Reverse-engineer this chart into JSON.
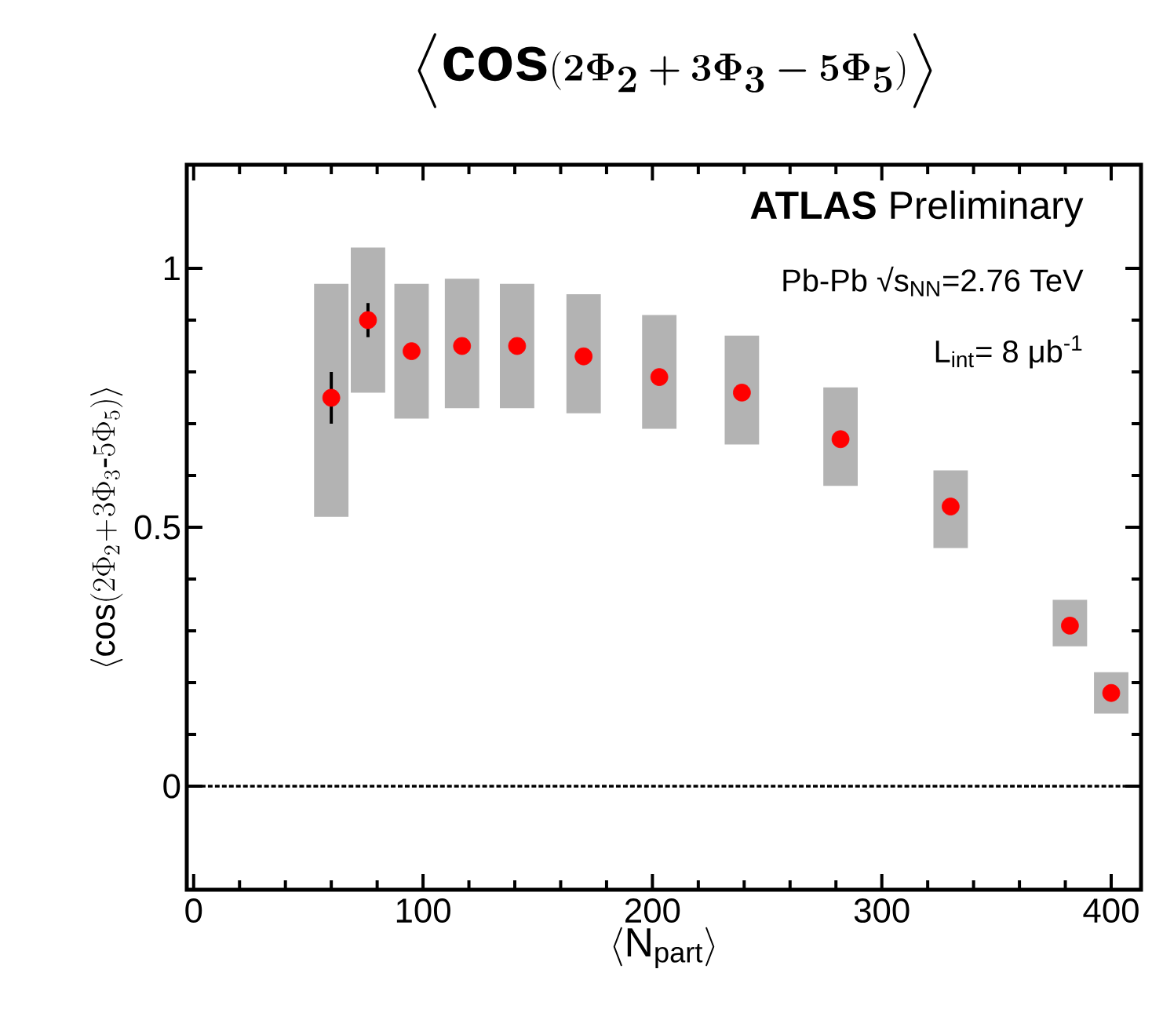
{
  "chart_data": {
    "type": "scatter",
    "title": "\\boldsymbol{\\left\\langle \\cos\\!\\left(2\\Phi_2+3\\Phi_3-5\\Phi_5\\right)\\right\\rangle}",
    "xlabel": "\\langle \\mathsf{N}_{\\mathsf{part}}\\rangle",
    "ylabel": "\\langle \\mathsf{cos}(2\\Phi_2\\!+\\!3\\Phi_3\\text{-}5\\Phi_5)\\rangle",
    "annotations": [
      "**ATLAS**    Preliminary",
      "Pb-Pb √s$_{NN}$=2.76 TeV",
      "L$_{int}$= 8 μb$^{-1}$"
    ],
    "xlim": [
      -3,
      413
    ],
    "ylim": [
      -0.2,
      1.2
    ],
    "xticks": [
      0,
      100,
      200,
      300,
      400
    ],
    "yticks": [
      0,
      0.5,
      1
    ],
    "ref_lines": [
      {
        "axis": "y",
        "value": 0,
        "line_style": "dashed",
        "color": "#000000"
      }
    ],
    "series": [
      {
        "type": "bar",
        "color": "#b3b3b3",
        "x": [
          60,
          76,
          95,
          117,
          141,
          170,
          203,
          239,
          282,
          330,
          382,
          400
        ],
        "base": [
          0.52,
          0.76,
          0.71,
          0.73,
          0.73,
          0.72,
          0.69,
          0.66,
          0.58,
          0.46,
          0.27,
          0.14
        ],
        "values": [
          0.45,
          0.28,
          0.26,
          0.25,
          0.24,
          0.23,
          0.22,
          0.21,
          0.19,
          0.15,
          0.09,
          0.08
        ]
      },
      {
        "color": "#ff0000",
        "marker": "circle",
        "x": [
          60,
          76,
          95,
          117,
          141,
          170,
          203,
          239,
          282,
          330,
          382,
          400
        ],
        "values": [
          0.75,
          0.9,
          0.84,
          0.85,
          0.85,
          0.83,
          0.79,
          0.76,
          0.67,
          0.54,
          0.31,
          0.18
        ],
        "errors": [
          0.05,
          0.033,
          null,
          null,
          null,
          null,
          null,
          null,
          null,
          null,
          null,
          null
        ]
      }
    ]
  }
}
